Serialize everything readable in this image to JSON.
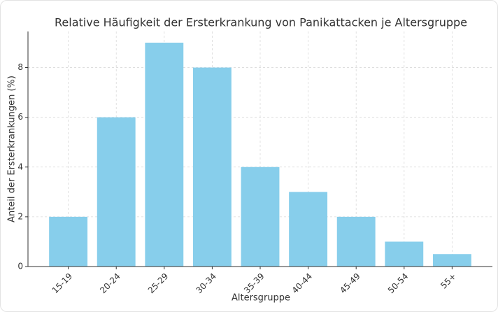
{
  "chart_data": {
    "type": "bar",
    "title": "Relative Häufigkeit der Ersterkrankung von Panikattacken je Altersgruppe",
    "x_label": "Altersgruppe",
    "y_label": "Anteil der Ersterkrankungen (%)",
    "categories": [
      "15-19",
      "20-24",
      "25-29",
      "30-34",
      "35-39",
      "40-44",
      "45-49",
      "50-54",
      "55+"
    ],
    "values": [
      2,
      6,
      9,
      8,
      4,
      3,
      2,
      1,
      0.5
    ],
    "color": "#87ceeb",
    "ylim": [
      0,
      9.45
    ],
    "yticks": [
      0,
      2,
      4,
      6,
      8
    ],
    "grid": true
  }
}
